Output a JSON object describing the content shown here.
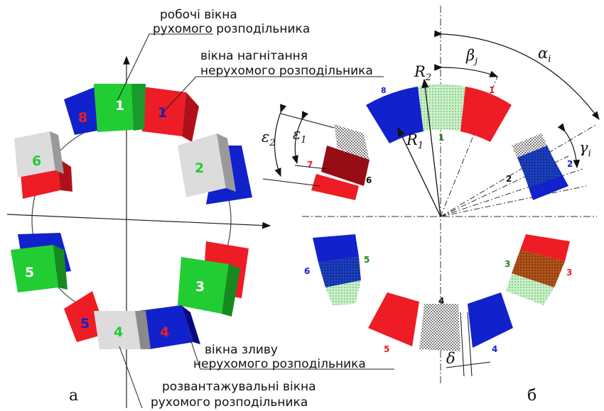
{
  "labels": {
    "working_windows_line1": "робочі вікна",
    "working_windows_line2": "рухомого розподільника",
    "injection_line1": "вікна нагнітання",
    "injection_line2": "нерухомого розподільника",
    "drain_line1": "вікна зливу",
    "drain_line2": "нерухомого розподільника",
    "unload_line1": "розвантажувальні вікна",
    "unload_line2": "рухомого розподільника",
    "panel_a": "а",
    "panel_b": "б"
  },
  "symbols": {
    "alpha": "α",
    "alpha_sub": "i",
    "beta": "β",
    "beta_sub": "j",
    "gamma": "γ",
    "gamma_sub": "i",
    "eps2": "ε",
    "eps2_sub": "2",
    "eps1": "ε",
    "eps1_sub": "1",
    "R2": "R",
    "R2_sub": "2",
    "R1": "R",
    "R1_sub": "1",
    "delta": "δ"
  },
  "left_numbers": {
    "g1": "1",
    "g2": "2",
    "g3": "3",
    "g4": "4",
    "g5": "5",
    "g6": "6",
    "r8": "8",
    "b1": "1",
    "r4": "4",
    "b5": "5"
  },
  "right_numbers": {
    "n8": "8",
    "n1r": "1",
    "n1g": "1",
    "n2": "2",
    "n2d": "2",
    "n7": "7",
    "n6": "6",
    "n3g": "3",
    "n3r": "3",
    "n5g": "5",
    "n6b": "6",
    "n4": "4",
    "n4b": "4",
    "n5r": "5"
  },
  "colors": {
    "red": "#ee1c24",
    "green": "#22cc33",
    "blue": "#1122cc",
    "gray": "#d9d9d9",
    "darkred": "#b0101a",
    "brown": "#b0521a",
    "lightgreen": "#c8f2c8"
  }
}
